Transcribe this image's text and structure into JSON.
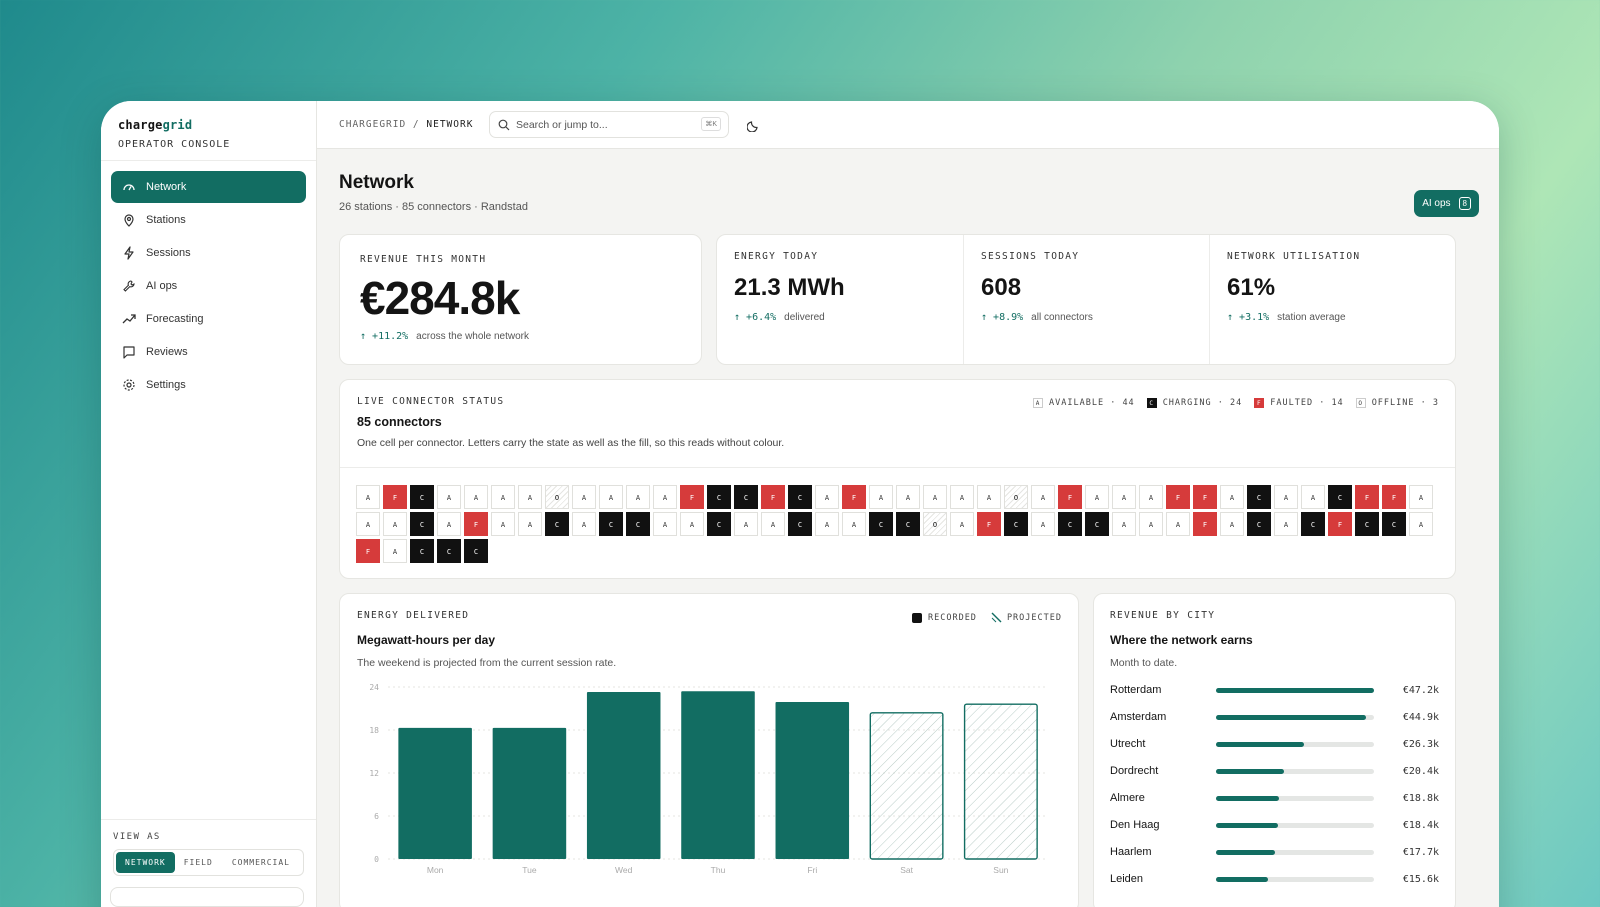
{
  "brand": {
    "name_a": "charge",
    "name_b": "grid",
    "subtitle": "OPERATOR CONSOLE"
  },
  "nav": [
    {
      "label": "Network",
      "icon": "gauge-icon"
    },
    {
      "label": "Stations",
      "icon": "pin-icon"
    },
    {
      "label": "Sessions",
      "icon": "bolt-icon"
    },
    {
      "label": "AI ops",
      "icon": "wrench-icon"
    },
    {
      "label": "Forecasting",
      "icon": "trend-icon"
    },
    {
      "label": "Reviews",
      "icon": "chat-icon"
    },
    {
      "label": "Settings",
      "icon": "gear-icon"
    }
  ],
  "view_as": {
    "label": "VIEW AS",
    "options": [
      "NETWORK",
      "FIELD",
      "COMMERCIAL"
    ],
    "selected": "NETWORK"
  },
  "topbar": {
    "crumb_root": "CHARGEGRID",
    "crumb_sep": " / ",
    "crumb_page": "NETWORK",
    "search_placeholder": "Search or jump to...",
    "search_kbd": "⌘K"
  },
  "page": {
    "title": "Network",
    "subtitle": "26 stations · 85 connectors · Randstad",
    "aiops_label": "AI ops",
    "aiops_count": "8"
  },
  "kpis": {
    "revenue": {
      "label": "REVENUE THIS MONTH",
      "value": "€284.8k",
      "delta": "+11.2%",
      "note": "across the whole network"
    },
    "energy": {
      "label": "ENERGY TODAY",
      "value": "21.3 MWh",
      "delta": "+6.4%",
      "note": "delivered"
    },
    "sessions": {
      "label": "SESSIONS TODAY",
      "value": "608",
      "delta": "+8.9%",
      "note": "all connectors"
    },
    "util": {
      "label": "NETWORK UTILISATION",
      "value": "61%",
      "delta": "+3.1%",
      "note": "station average"
    }
  },
  "status": {
    "label": "LIVE CONNECTOR STATUS",
    "title": "85 connectors",
    "desc": "One cell per connector. Letters carry the state as well as the fill, so this reads without colour.",
    "legend": [
      {
        "code": "A",
        "text": "AVAILABLE",
        "count": "44"
      },
      {
        "code": "C",
        "text": "CHARGING",
        "count": "24"
      },
      {
        "code": "F",
        "text": "FAULTED",
        "count": "14"
      },
      {
        "code": "O",
        "text": "OFFLINE",
        "count": "3"
      }
    ],
    "cells": [
      "A",
      "F",
      "C",
      "A",
      "A",
      "A",
      "A",
      "O",
      "A",
      "A",
      "A",
      "A",
      "F",
      "C",
      "C",
      "F",
      "C",
      "A",
      "F",
      "A",
      "A",
      "A",
      "A",
      "A",
      "O",
      "A",
      "F",
      "A",
      "A",
      "A",
      "F",
      "F",
      "A",
      "C",
      "A",
      "A",
      "C",
      "F",
      "F",
      "A",
      "A",
      "A",
      "C",
      "A",
      "F",
      "A",
      "A",
      "C",
      "A",
      "C",
      "C",
      "A",
      "A",
      "C",
      "A",
      "A",
      "C",
      "A",
      "A",
      "C",
      "C",
      "O",
      "A",
      "F",
      "C",
      "A",
      "C",
      "C",
      "A",
      "A",
      "A",
      "F",
      "A",
      "C",
      "A",
      "C",
      "F",
      "C",
      "C",
      "A",
      "F",
      "A",
      "C",
      "C",
      "C"
    ]
  },
  "energy_chart": {
    "label": "ENERGY DELIVERED",
    "title": "Megawatt-hours per day",
    "desc": "The weekend is projected from the current session rate.",
    "legend_recorded": "RECORDED",
    "legend_projected": "PROJECTED",
    "chart_data": {
      "type": "bar",
      "categories": [
        "Mon",
        "Tue",
        "Wed",
        "Thu",
        "Fri",
        "Sat",
        "Sun"
      ],
      "series": [
        {
          "name": "RECORDED",
          "values": [
            18.3,
            18.3,
            23.3,
            23.4,
            21.9,
            null,
            null
          ]
        },
        {
          "name": "PROJECTED",
          "values": [
            null,
            null,
            null,
            null,
            null,
            20.4,
            21.6
          ]
        }
      ],
      "yticks": [
        "24",
        "18",
        "12",
        "6",
        "0"
      ],
      "ylim": [
        0,
        24
      ],
      "grid": true
    }
  },
  "city": {
    "label": "REVENUE BY CITY",
    "title": "Where the network earns",
    "desc": "Month to date.",
    "rows": [
      {
        "name": "Rotterdam",
        "value": "€47.2k",
        "share": 1.0
      },
      {
        "name": "Amsterdam",
        "value": "€44.9k",
        "share": 0.95
      },
      {
        "name": "Utrecht",
        "value": "€26.3k",
        "share": 0.56
      },
      {
        "name": "Dordrecht",
        "value": "€20.4k",
        "share": 0.43
      },
      {
        "name": "Almere",
        "value": "€18.8k",
        "share": 0.4
      },
      {
        "name": "Den Haag",
        "value": "€18.4k",
        "share": 0.39
      },
      {
        "name": "Haarlem",
        "value": "€17.7k",
        "share": 0.375
      },
      {
        "name": "Leiden",
        "value": "€15.6k",
        "share": 0.33
      }
    ]
  },
  "colors": {
    "accent": "#126d62",
    "fault": "#d63b3b",
    "charging": "#111111"
  }
}
